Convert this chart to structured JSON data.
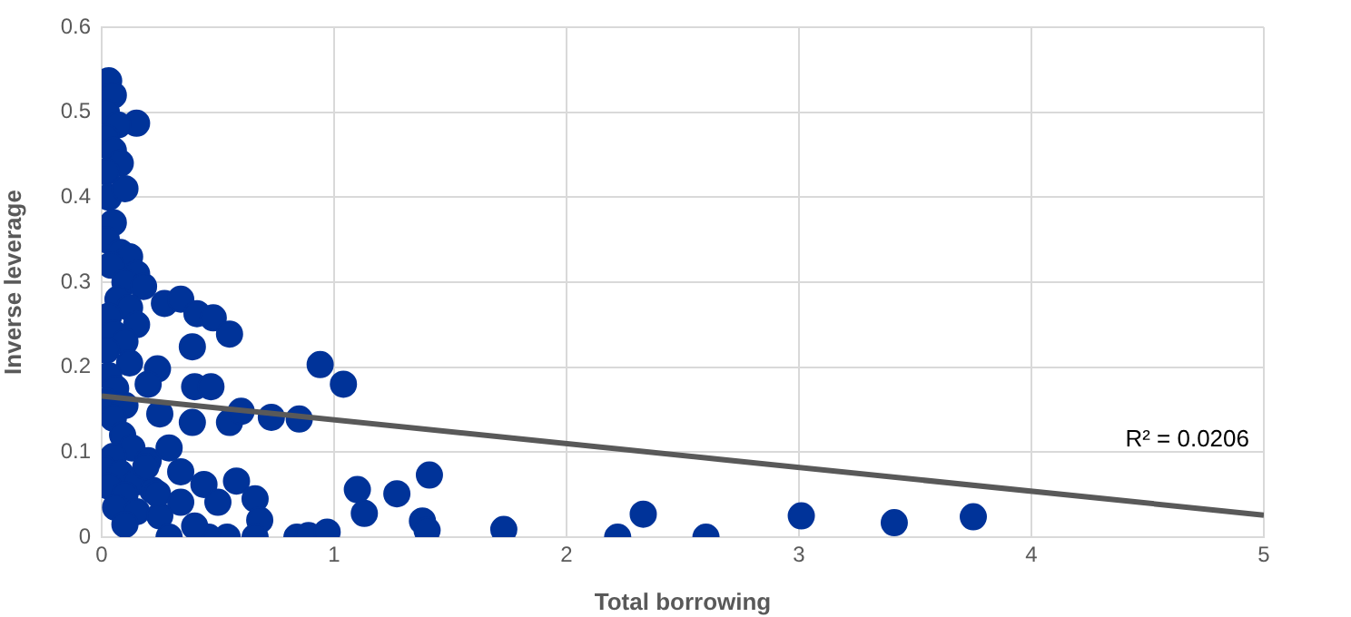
{
  "chart_data": {
    "type": "scatter",
    "xlabel": "Total borrowing",
    "ylabel": "Inverse leverage",
    "xlim": [
      0,
      5
    ],
    "xticks": [
      0,
      1,
      2,
      3,
      4,
      5
    ],
    "ylim": [
      0,
      0.6
    ],
    "yticks": [
      0.0,
      0.1,
      0.2,
      0.3,
      0.4,
      0.5,
      0.6
    ],
    "grid": true,
    "legend": false,
    "marker": "circle",
    "annotations": [
      "R² = 0.0206"
    ],
    "series": [
      {
        "color": "#003399",
        "x": [
          0.03,
          0.05,
          0.02,
          0.15,
          0.07,
          0.02,
          0.05,
          0.08,
          0.02,
          0.03,
          0.05,
          0.02,
          0.08,
          0.12,
          0.04,
          0.15,
          0.1,
          0.18,
          0.07,
          0.12,
          0.15,
          0.03,
          0.05,
          0.1,
          0.02,
          0.12,
          0.03,
          0.06,
          0.02,
          0.1,
          0.05,
          0.09,
          0.13,
          0.05,
          0.2,
          0.01,
          0.08,
          0.15,
          0.03,
          0.22,
          0.1,
          0.06,
          0.15,
          0.25,
          0.1,
          0.1,
          0.27,
          0.34,
          0.41,
          0.48,
          0.55,
          0.39,
          0.24,
          0.2,
          0.4,
          0.47,
          0.39,
          0.55,
          0.6,
          0.73,
          0.85,
          0.25,
          0.29,
          0.34,
          0.44,
          0.5,
          0.58,
          0.66,
          0.68,
          0.66,
          0.54,
          0.46,
          0.29,
          0.4,
          0.84,
          0.89,
          0.97,
          0.34,
          0.24,
          0.19,
          0.94,
          1.04,
          1.1,
          1.13,
          1.27,
          1.38,
          1.4,
          1.41,
          1.73,
          2.22,
          2.33,
          2.6,
          3.01,
          3.41,
          3.75
        ],
        "values": [
          0.537,
          0.52,
          0.5,
          0.487,
          0.485,
          0.47,
          0.455,
          0.44,
          0.43,
          0.4,
          0.37,
          0.35,
          0.335,
          0.33,
          0.32,
          0.31,
          0.3,
          0.295,
          0.28,
          0.27,
          0.25,
          0.26,
          0.24,
          0.23,
          0.22,
          0.205,
          0.19,
          0.175,
          0.16,
          0.155,
          0.14,
          0.12,
          0.105,
          0.095,
          0.09,
          0.08,
          0.075,
          0.065,
          0.06,
          0.055,
          0.05,
          0.035,
          0.03,
          0.025,
          0.015,
          0.41,
          0.275,
          0.28,
          0.263,
          0.258,
          0.239,
          0.224,
          0.198,
          0.18,
          0.177,
          0.177,
          0.135,
          0.135,
          0.148,
          0.141,
          0.139,
          0.145,
          0.105,
          0.077,
          0.062,
          0.041,
          0.066,
          0.045,
          0.02,
          0.0,
          0.0,
          0.0,
          0.0,
          0.013,
          0.0,
          0.002,
          0.006,
          0.041,
          0.051,
          0.083,
          0.203,
          0.18,
          0.056,
          0.028,
          0.051,
          0.019,
          0.008,
          0.073,
          0.009,
          0.0,
          0.027,
          0.0,
          0.025,
          0.017,
          0.024
        ]
      },
      {
        "type": "line",
        "marker": "none",
        "color": "#595959",
        "x": [
          0,
          5
        ],
        "values": [
          0.166,
          0.026
        ]
      }
    ]
  }
}
